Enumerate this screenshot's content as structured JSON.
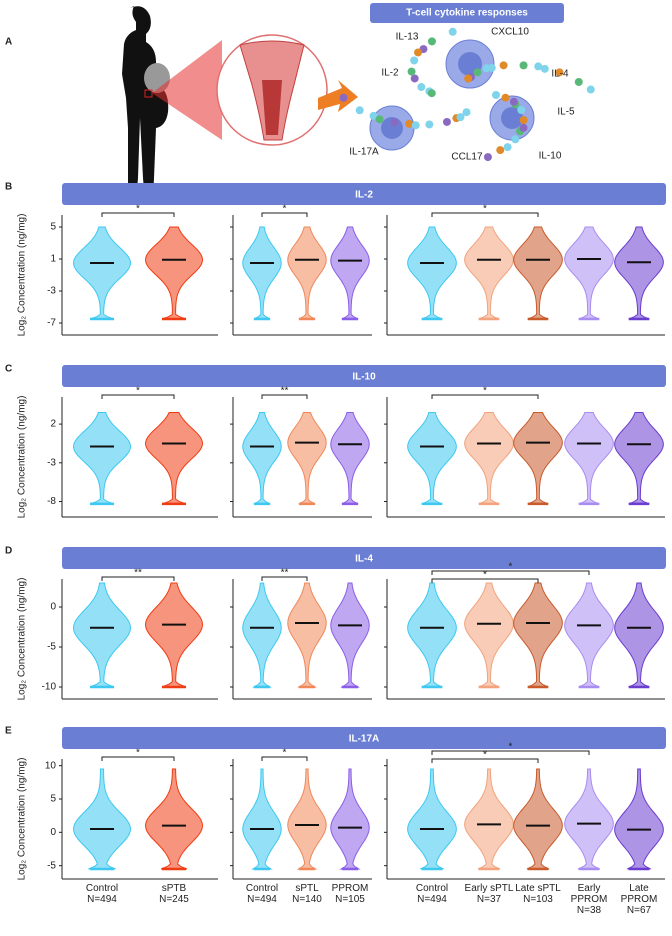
{
  "panel_a": {
    "letter": "A",
    "title": "T-cell cytokine responses",
    "labels": [
      "IL-13",
      "CXCL10",
      "IL-2",
      "IL-4",
      "IL-5",
      "IL-17A",
      "CCL17",
      "IL-10"
    ]
  },
  "groups": [
    {
      "categories": [
        "Control",
        "sPTB"
      ],
      "counts": [
        "N=494",
        "N=245"
      ],
      "colors": [
        "#3cc8f0",
        "#f03c12"
      ]
    },
    {
      "categories": [
        "Control",
        "sPTL",
        "PPROM"
      ],
      "counts": [
        "N=494",
        "N=140",
        "N=105"
      ],
      "colors": [
        "#3cc8f0",
        "#f0885a",
        "#8a5ee8"
      ]
    },
    {
      "categories": [
        "Control",
        "Early sPTL",
        "Late sPTL",
        "Early PPROM",
        "Late PPROM"
      ],
      "counts": [
        "N=494",
        "N=37",
        "N=103",
        "N=38",
        "N=67"
      ],
      "colors": [
        "#3cc8f0",
        "#f2a27c",
        "#c85a2c",
        "#a88cf0",
        "#6a3cd0"
      ]
    }
  ],
  "chart_data": [
    {
      "type": "violin",
      "panel": "B",
      "title": "IL-2",
      "y_label": "Log₂ Concentration (ng/mg)",
      "ylim": [
        -8.5,
        6.5
      ],
      "yticks": [
        5,
        1,
        -3,
        -7
      ],
      "range": [
        -6.5,
        5
      ],
      "medians": [
        [
          0.5,
          0.9
        ],
        [
          0.5,
          0.9,
          0.8
        ],
        [
          0.5,
          0.9,
          0.9,
          1.0,
          0.6
        ]
      ],
      "brackets": [
        [
          {
            "between": [
              0,
              1
            ],
            "label": "*"
          }
        ],
        [
          {
            "between": [
              0,
              1
            ],
            "label": "*"
          }
        ],
        [
          {
            "between": [
              0,
              2
            ],
            "label": "*"
          }
        ]
      ]
    },
    {
      "type": "violin",
      "panel": "C",
      "title": "IL-10",
      "y_label": "Log₂ Concentration (ng/mg)",
      "ylim": [
        -10,
        5.5
      ],
      "yticks": [
        2,
        -3,
        -8
      ],
      "range": [
        -8.3,
        3.5
      ],
      "medians": [
        [
          -0.9,
          -0.5
        ],
        [
          -0.9,
          -0.4,
          -0.6
        ],
        [
          -0.9,
          -0.5,
          -0.4,
          -0.5,
          -0.6
        ]
      ],
      "brackets": [
        [
          {
            "between": [
              0,
              1
            ],
            "label": "*"
          }
        ],
        [
          {
            "between": [
              0,
              1
            ],
            "label": "**"
          }
        ],
        [
          {
            "between": [
              0,
              2
            ],
            "label": "*"
          }
        ]
      ]
    },
    {
      "type": "violin",
      "panel": "D",
      "title": "IL-4",
      "y_label": "Log₂ Concentration (ng/mg)",
      "ylim": [
        -11.5,
        3.5
      ],
      "yticks": [
        0,
        -5,
        -10
      ],
      "range": [
        -10,
        3
      ],
      "medians": [
        [
          -2.6,
          -2.2
        ],
        [
          -2.6,
          -2.0,
          -2.3
        ],
        [
          -2.6,
          -2.1,
          -2.0,
          -2.3,
          -2.6
        ]
      ],
      "brackets": [
        [
          {
            "between": [
              0,
              1
            ],
            "label": "**"
          }
        ],
        [
          {
            "between": [
              0,
              1
            ],
            "label": "**"
          }
        ],
        [
          {
            "between": [
              0,
              2
            ],
            "label": "*"
          },
          {
            "between": [
              0,
              3
            ],
            "label": "*"
          }
        ]
      ]
    },
    {
      "type": "violin",
      "panel": "E",
      "title": "IL-17A",
      "y_label": "Log₂ Concentration (ng/mg)",
      "ylim": [
        -7,
        11
      ],
      "yticks": [
        10,
        5,
        0,
        -5
      ],
      "range": [
        -5.5,
        9.5
      ],
      "medians": [
        [
          0.5,
          1.0
        ],
        [
          0.5,
          1.1,
          0.7
        ],
        [
          0.5,
          1.2,
          1.0,
          1.3,
          0.4
        ]
      ],
      "brackets": [
        [
          {
            "between": [
              0,
              1
            ],
            "label": "*"
          }
        ],
        [
          {
            "between": [
              0,
              1
            ],
            "label": "*"
          }
        ],
        [
          {
            "between": [
              0,
              2
            ],
            "label": "*"
          },
          {
            "between": [
              0,
              3
            ],
            "label": "*"
          }
        ]
      ]
    }
  ]
}
